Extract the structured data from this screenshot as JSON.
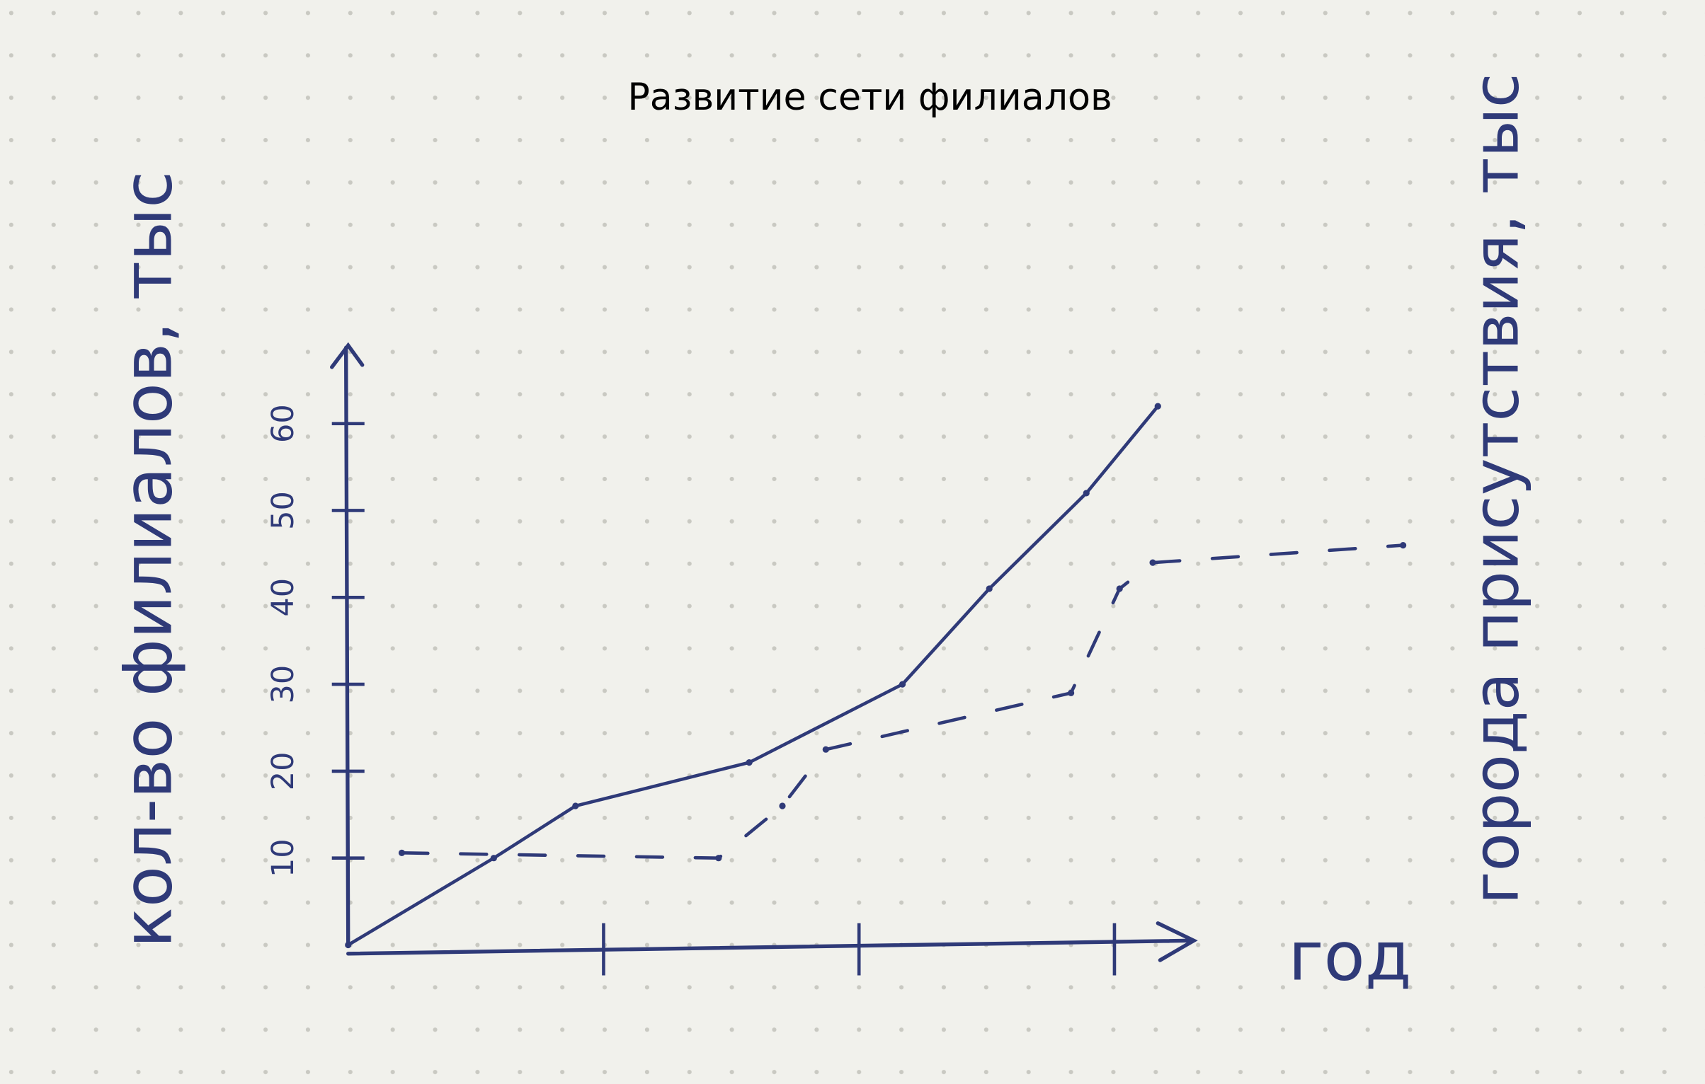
{
  "chart_data": {
    "type": "line",
    "title": "Развитие сети филиалов",
    "x_label": "год",
    "y_label": "кол-во филиалов, тыс",
    "y2_label": "города присутствия, тыс",
    "xlim": [
      0,
      4.2
    ],
    "xticks": [
      1,
      2,
      3
    ],
    "ylim": [
      0,
      68
    ],
    "yticks": [
      10,
      20,
      30,
      40,
      50,
      60
    ],
    "y2lim": [
      0,
      68
    ],
    "series": [
      {
        "color": "#2f3a78",
        "dash": false,
        "x": [
          0,
          0.57,
          0.89,
          1.57,
          2.17,
          2.51,
          2.89,
          3.17
        ],
        "values": [
          0,
          10,
          16,
          21,
          30,
          41,
          52,
          62
        ]
      },
      {
        "color": "#2f3a78",
        "dash": true,
        "axis": "y2",
        "x": [
          0.21,
          1.45,
          1.7,
          1.87,
          2.83,
          3.02,
          3.15,
          4.13
        ],
        "values": [
          10.6,
          10,
          16,
          22.5,
          29,
          41,
          44,
          46
        ]
      }
    ]
  }
}
